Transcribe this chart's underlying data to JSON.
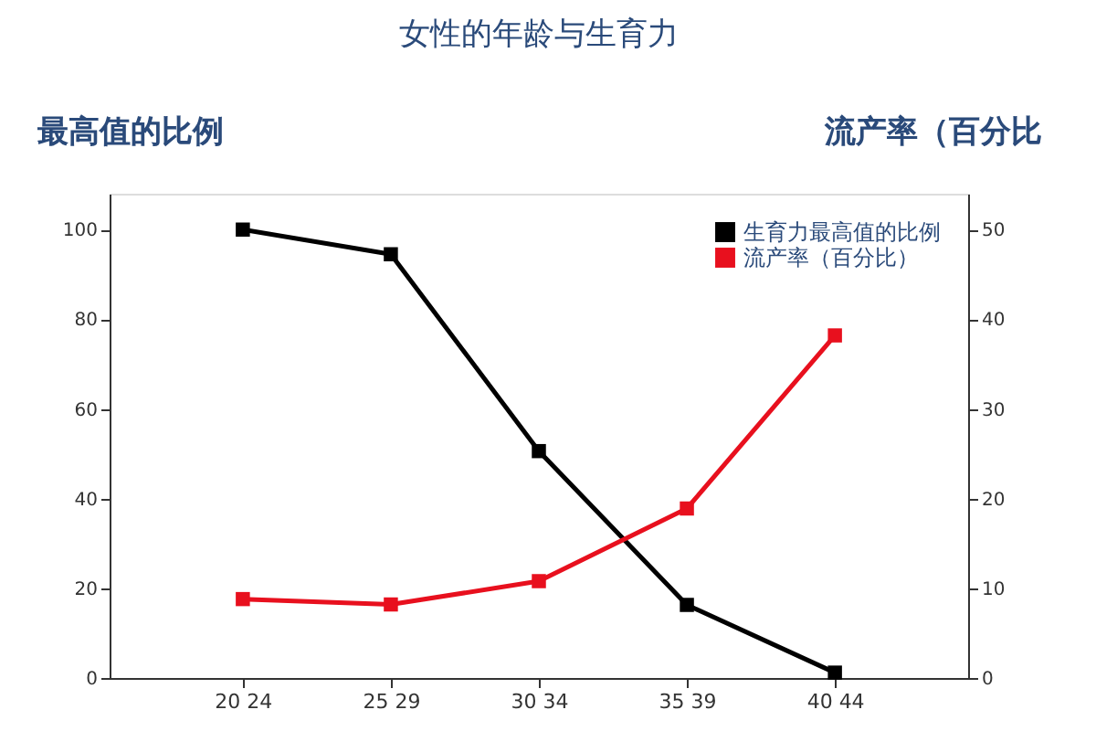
{
  "chart_data": {
    "type": "line",
    "title": "女性的年龄与生育力",
    "ylabel": "最高值的比例",
    "y2label": "流产率（百分比",
    "categories": [
      "20 24",
      "25 29",
      "30 34",
      "35 39",
      "40 44"
    ],
    "series": [
      {
        "name": "生育力最高值的比例",
        "color": "#000000",
        "values": [
          100,
          94.5,
          50.6,
          16.3,
          1.2
        ]
      },
      {
        "name": "流产率（百分比）",
        "color": "#e8101e",
        "axis": "y2",
        "values": [
          8.8,
          8.2,
          10.8,
          18.9,
          38.2
        ]
      }
    ],
    "ylim": [
      0,
      108
    ],
    "yticks": [
      0,
      20,
      40,
      60,
      80,
      100
    ],
    "y2lim": [
      0,
      54
    ],
    "y2ticks": [
      0,
      10,
      20,
      30,
      40,
      50
    ],
    "marker": "square",
    "line_style": "solid",
    "grid": false,
    "legend": "top right"
  }
}
